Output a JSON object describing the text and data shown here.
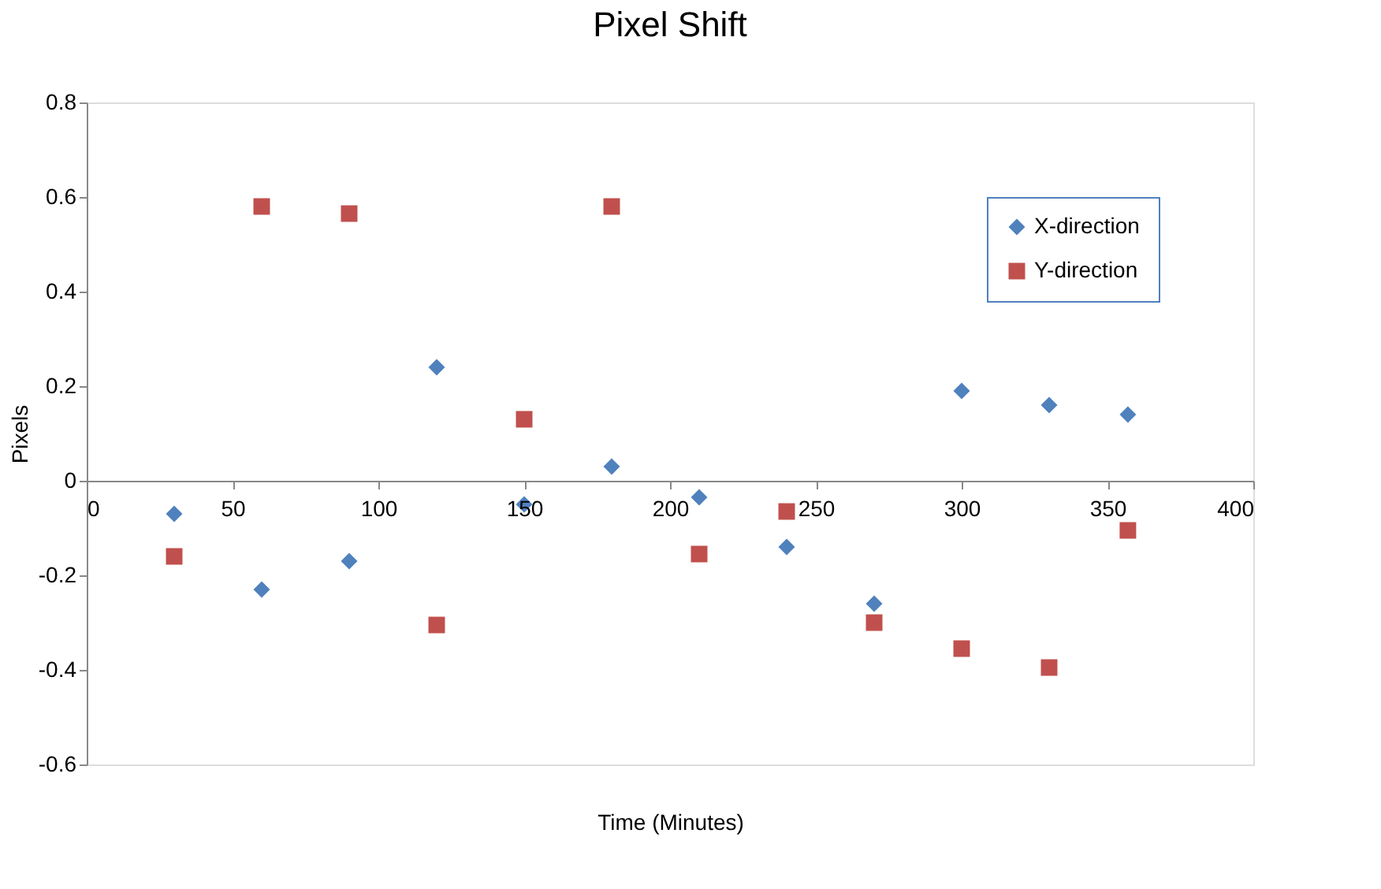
{
  "chart_data": {
    "type": "scatter",
    "title": "Pixel Shift",
    "xlabel": "Time (Minutes)",
    "ylabel": "Pixels",
    "x": [
      30,
      60,
      90,
      120,
      150,
      180,
      210,
      240,
      270,
      300,
      330,
      357
    ],
    "series": [
      {
        "name": "X-direction",
        "color": "#4f81bd",
        "marker": "diamond",
        "values": [
          -0.07,
          -0.23,
          -0.17,
          0.24,
          -0.05,
          0.03,
          -0.035,
          -0.14,
          -0.26,
          0.19,
          0.16,
          0.14
        ]
      },
      {
        "name": "Y-direction",
        "color": "#c0504d",
        "marker": "square",
        "values": [
          -0.16,
          0.58,
          0.565,
          -0.305,
          0.13,
          0.58,
          -0.155,
          -0.065,
          -0.3,
          -0.355,
          -0.395,
          -0.105
        ]
      }
    ],
    "xlim": [
      0,
      400
    ],
    "xticks": [
      0,
      50,
      100,
      150,
      200,
      250,
      300,
      350,
      400
    ],
    "ylim": [
      -0.6,
      0.8
    ],
    "yticks": [
      -0.6,
      -0.4,
      -0.2,
      0,
      0.2,
      0.4,
      0.6,
      0.8
    ],
    "grid": false,
    "legend": "top right"
  }
}
